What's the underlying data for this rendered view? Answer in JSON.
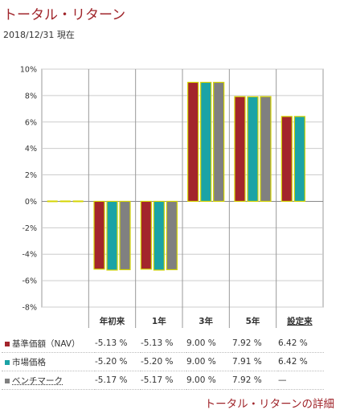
{
  "page": {
    "title": "トータル・リターン",
    "as_of": "2018/12/31 現在",
    "detail_link": "トータル・リターンの詳細"
  },
  "colors": {
    "nav": "#a3252c",
    "market": "#1ba3a6",
    "bench": "#808080",
    "bar_border": "#d4d400",
    "grid": "#cccccc",
    "title": "#a0252b"
  },
  "chart_data": {
    "type": "bar",
    "categories": [
      "",
      "年初来",
      "1年",
      "3年",
      "5年",
      "設定来"
    ],
    "series": [
      {
        "name": "基準価額（NAV）",
        "values": [
          0,
          -5.13,
          -5.13,
          9.0,
          7.92,
          6.42
        ]
      },
      {
        "name": "市場価格",
        "values": [
          0,
          -5.2,
          -5.2,
          9.0,
          7.91,
          6.42
        ]
      },
      {
        "name": "ベンチマーク",
        "values": [
          0,
          -5.17,
          -5.17,
          9.0,
          7.92,
          null
        ]
      }
    ],
    "yticks": [
      "10%",
      "8%",
      "6%",
      "4%",
      "2%",
      "0%",
      "-2%",
      "-4%",
      "-6%",
      "-8%"
    ],
    "ylim": [
      -8,
      10
    ],
    "grid": true
  },
  "table": {
    "headers": [
      "",
      "年初来",
      "1年",
      "3年",
      "5年",
      "設定来"
    ],
    "rows": [
      {
        "name": "基準価額（NAV）",
        "values": [
          "-5.13 %",
          "-5.13 %",
          "9.00 %",
          "7.92 %",
          "6.42 %"
        ]
      },
      {
        "name": "市場価格",
        "values": [
          "-5.20 %",
          "-5.20 %",
          "9.00 %",
          "7.91 %",
          "6.42 %"
        ]
      },
      {
        "name": "ベンチマーク",
        "values": [
          "-5.17 %",
          "-5.17 %",
          "9.00 %",
          "7.92 %",
          "—"
        ]
      }
    ]
  }
}
